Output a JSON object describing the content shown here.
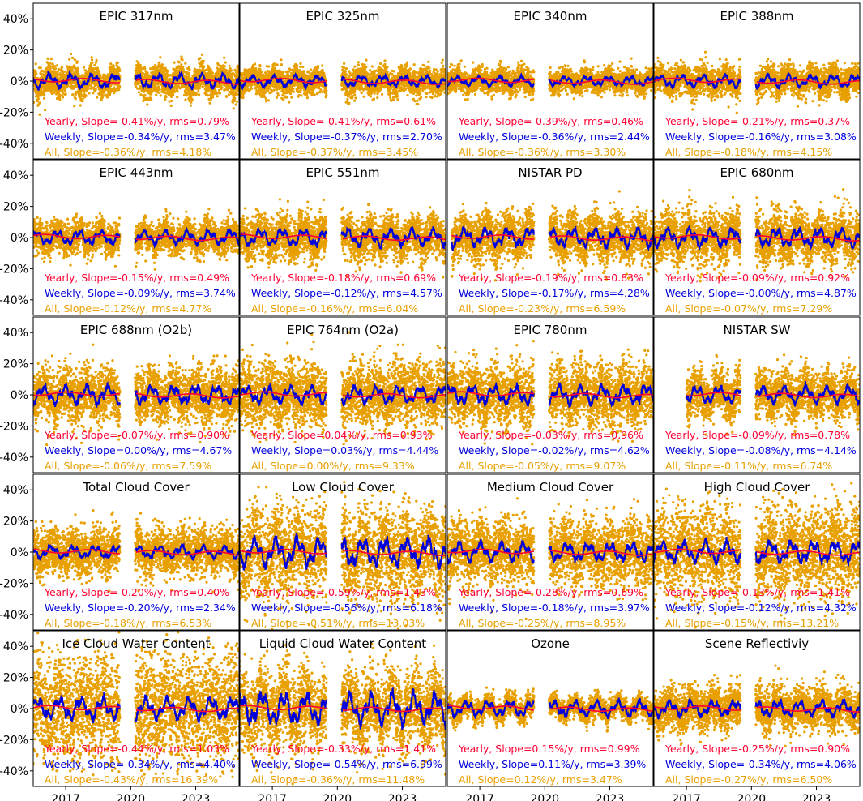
{
  "colors": {
    "yearly": "#ff0033",
    "weekly": "#0000dd",
    "all": "#e8a000",
    "frame": "#000000"
  },
  "chart_data": {
    "type": "scatter",
    "layout": "5x4 grid of panels sharing x and y axes",
    "ylim": [
      -0.5,
      0.5
    ],
    "y_ticks": [
      "40%",
      "20%",
      "0%",
      "-20%",
      "-40%"
    ],
    "y_tick_values": [
      40,
      20,
      0,
      -20,
      -40
    ],
    "x_ticks": [
      "2017",
      "2020",
      "2023"
    ],
    "x_tick_values": [
      2017,
      2020,
      2023
    ],
    "xlim": [
      2015.5,
      2025.0
    ],
    "grid": false,
    "series_styles": {
      "all": "orange dots",
      "weekly": "blue line",
      "yearly": "red line"
    },
    "panels": [
      {
        "title": "EPIC 317nm",
        "start": 2015.5,
        "gap": [
          2019.5,
          2020.2
        ],
        "amp_all": 0.08,
        "amp_weekly": 0.045,
        "stats": {
          "yearly": "Yearly, Slope=-0.41%/y, rms=0.79%",
          "weekly": "Weekly, Slope=-0.34%/y, rms=3.47%",
          "all": "All, Slope=-0.36%/y, rms=4.18%"
        }
      },
      {
        "title": "EPIC 325nm",
        "start": 2015.5,
        "gap": [
          2019.5,
          2020.2
        ],
        "amp_all": 0.07,
        "amp_weekly": 0.035,
        "stats": {
          "yearly": "Yearly, Slope=-0.41%/y, rms=0.61%",
          "weekly": "Weekly, Slope=-0.37%/y, rms=2.70%",
          "all": "All, Slope=-0.37%/y, rms=3.45%"
        }
      },
      {
        "title": "EPIC 340nm",
        "start": 2015.5,
        "gap": [
          2019.5,
          2020.2
        ],
        "amp_all": 0.065,
        "amp_weekly": 0.03,
        "stats": {
          "yearly": "Yearly, Slope=-0.39%/y, rms=0.46%",
          "weekly": "Weekly, Slope=-0.36%/y, rms=2.44%",
          "all": "All, Slope=-0.36%/y, rms=3.30%"
        }
      },
      {
        "title": "EPIC 388nm",
        "start": 2015.5,
        "gap": [
          2019.5,
          2020.2
        ],
        "amp_all": 0.08,
        "amp_weekly": 0.04,
        "stats": {
          "yearly": "Yearly, Slope=-0.21%/y, rms=0.37%",
          "weekly": "Weekly, Slope=-0.16%/y, rms=3.08%",
          "all": "All, Slope=-0.18%/y, rms=4.15%"
        }
      },
      {
        "title": "EPIC 443nm",
        "start": 2015.5,
        "gap": [
          2019.5,
          2020.2
        ],
        "amp_all": 0.09,
        "amp_weekly": 0.045,
        "stats": {
          "yearly": "Yearly, Slope=-0.15%/y, rms=0.49%",
          "weekly": "Weekly, Slope=-0.09%/y, rms=3.74%",
          "all": "All, Slope=-0.12%/y, rms=4.77%"
        }
      },
      {
        "title": "EPIC 551nm",
        "start": 2015.5,
        "gap": [
          2019.5,
          2020.2
        ],
        "amp_all": 0.12,
        "amp_weekly": 0.055,
        "stats": {
          "yearly": "Yearly, Slope=-0.18%/y, rms=0.69%",
          "weekly": "Weekly, Slope=-0.12%/y, rms=4.57%",
          "all": "All, Slope=-0.16%/y, rms=6.04%"
        }
      },
      {
        "title": "NISTAR PD",
        "start": 2015.7,
        "gap": [
          2019.5,
          2020.2
        ],
        "amp_all": 0.13,
        "amp_weekly": 0.06,
        "stats": {
          "yearly": "Yearly, Slope=-0.19%/y, rms=0.83%",
          "weekly": "Weekly, Slope=-0.17%/y, rms=4.28%",
          "all": "All, Slope=-0.23%/y, rms=6.59%"
        }
      },
      {
        "title": "EPIC 680nm",
        "start": 2015.5,
        "gap": [
          2019.5,
          2020.2
        ],
        "amp_all": 0.14,
        "amp_weekly": 0.06,
        "stats": {
          "yearly": "Yearly, Slope=-0.09%/y, rms=0.92%",
          "weekly": "Weekly, Slope=-0.00%/y, rms=4.87%",
          "all": "All, Slope=-0.07%/y, rms=7.29%"
        }
      },
      {
        "title": "EPIC 688nm (O2b)",
        "start": 2015.5,
        "gap": [
          2019.5,
          2020.2
        ],
        "amp_all": 0.15,
        "amp_weekly": 0.06,
        "stats": {
          "yearly": "Yearly, Slope=-0.07%/y, rms=0.90%",
          "weekly": "Weekly, Slope=0.00%/y, rms=4.67%",
          "all": "All, Slope=-0.06%/y, rms=7.59%"
        }
      },
      {
        "title": "EPIC 764nm (O2a)",
        "start": 2015.5,
        "gap": [
          2019.5,
          2020.2
        ],
        "amp_all": 0.18,
        "amp_weekly": 0.055,
        "stats": {
          "yearly": "Yearly, Slope=0.04%/y, rms=0.93%",
          "weekly": "Weekly, Slope=0.03%/y, rms=4.44%",
          "all": "All, Slope=0.00%/y, rms=9.33%"
        }
      },
      {
        "title": "EPIC 780nm",
        "start": 2015.5,
        "gap": [
          2019.5,
          2020.2
        ],
        "amp_all": 0.17,
        "amp_weekly": 0.06,
        "stats": {
          "yearly": "Yearly, Slope=-0.03%/y, rms=0.96%",
          "weekly": "Weekly, Slope=-0.02%/y, rms=4.62%",
          "all": "All, Slope=-0.05%/y, rms=9.07%"
        }
      },
      {
        "title": "NISTAR SW",
        "start": 2017.0,
        "gap": [
          2019.5,
          2020.2
        ],
        "amp_all": 0.13,
        "amp_weekly": 0.055,
        "stats": {
          "yearly": "Yearly, Slope=-0.09%/y, rms=0.78%",
          "weekly": "Weekly, Slope=-0.08%/y, rms=4.14%",
          "all": "All, Slope=-0.11%/y, rms=6.74%"
        }
      },
      {
        "title": "Total Cloud Cover",
        "start": 2015.5,
        "gap": [
          2019.5,
          2020.2
        ],
        "amp_all": 0.13,
        "amp_weekly": 0.04,
        "stats": {
          "yearly": "Yearly, Slope=-0.20%/y, rms=0.40%",
          "weekly": "Weekly, Slope=-0.20%/y, rms=2.34%",
          "all": "All, Slope=-0.18%/y, rms=6.53%"
        }
      },
      {
        "title": "Low Cloud Cover",
        "start": 2015.5,
        "gap": [
          2019.5,
          2020.2
        ],
        "amp_all": 0.25,
        "amp_weekly": 0.09,
        "stats": {
          "yearly": "Yearly, Slope=-0.59%/y, rms=1.43%",
          "weekly": "Weekly, Slope=-0.56%/y, rms=6.18%",
          "all": "All, Slope=-0.51%/y, rms=13.03%"
        }
      },
      {
        "title": "Medium Cloud Cover",
        "start": 2015.5,
        "gap": [
          2019.5,
          2020.2
        ],
        "amp_all": 0.18,
        "amp_weekly": 0.06,
        "stats": {
          "yearly": "Yearly, Slope=-0.28%/y, rms=0.69%",
          "weekly": "Weekly, Slope=-0.18%/y, rms=3.97%",
          "all": "All, Slope=-0.25%/y, rms=8.95%"
        }
      },
      {
        "title": "High Cloud Cover",
        "start": 2015.5,
        "gap": [
          2019.5,
          2020.2
        ],
        "amp_all": 0.25,
        "amp_weekly": 0.07,
        "stats": {
          "yearly": "Yearly, Slope=-0.13%/y, rms=1.41%",
          "weekly": "Weekly, Slope=-0.12%/y, rms=4.32%",
          "all": "All, Slope=-0.15%/y, rms=13.21%"
        }
      },
      {
        "title": "Ice Cloud Water Content",
        "start": 2015.5,
        "gap": [
          2019.5,
          2020.2
        ],
        "amp_all": 0.3,
        "amp_weekly": 0.07,
        "stats": {
          "yearly": "Yearly, Slope=-0.44%/y, rms=1.03%",
          "weekly": "Weekly, Slope=-0.34%/y, rms=4.40%",
          "all": "All, Slope=-0.43%/y, rms=16.39%"
        }
      },
      {
        "title": "Liquid Cloud Water Content",
        "start": 2015.5,
        "gap": [
          2019.5,
          2020.2
        ],
        "amp_all": 0.22,
        "amp_weekly": 0.1,
        "stats": {
          "yearly": "Yearly, Slope=-0.33%/y, rms=1.41%",
          "weekly": "Weekly, Slope=-0.54%/y, rms=6.99%",
          "all": "All, Slope=-0.36%/y, rms=11.48%"
        }
      },
      {
        "title": "Ozone",
        "start": 2015.5,
        "gap": [
          2019.5,
          2020.2
        ],
        "amp_all": 0.06,
        "amp_weekly": 0.05,
        "stats": {
          "yearly": "Yearly, Slope=0.15%/y, rms=0.99%",
          "weekly": "Weekly, Slope=0.11%/y, rms=3.39%",
          "all": "All, Slope=0.12%/y, rms=3.47%"
        }
      },
      {
        "title": "Scene Reflectiviy",
        "start": 2015.5,
        "gap": [
          2019.5,
          2020.2
        ],
        "amp_all": 0.12,
        "amp_weekly": 0.05,
        "stats": {
          "yearly": "Yearly, Slope=-0.25%/y, rms=0.90%",
          "weekly": "Weekly, Slope=-0.34%/y, rms=4.06%",
          "all": "All, Slope=-0.27%/y, rms=6.50%"
        }
      }
    ]
  }
}
